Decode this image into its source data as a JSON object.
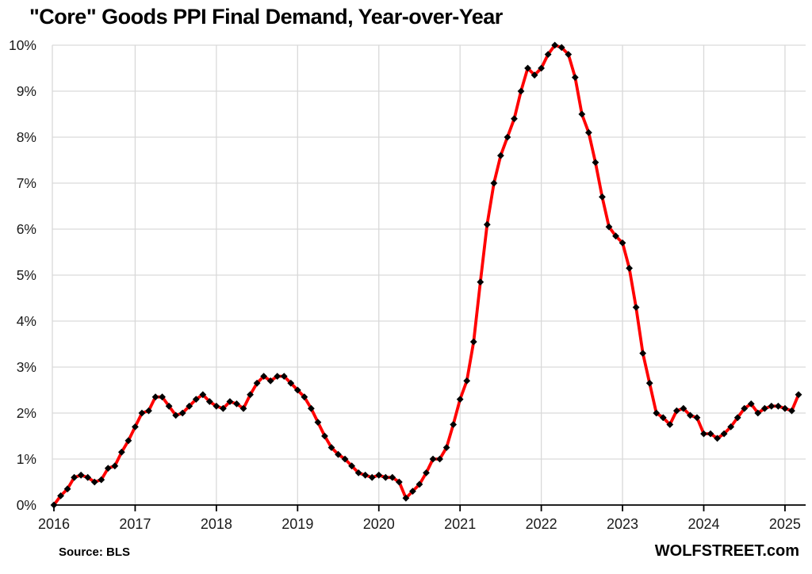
{
  "chart": {
    "title": "\"Core\" Goods PPI Final Demand, Year-over-Year"
  },
  "footer": {
    "source": "Source: BLS",
    "watermark": "WOLFSTREET.com"
  },
  "chart_data": {
    "type": "line",
    "title": "\"Core\" Goods PPI Final Demand, Year-over-Year",
    "unit": "percent, year-over-year",
    "frequency": "monthly",
    "x_start": "2016-01",
    "x_end": "2025-03",
    "x_tick_labels": [
      "2016",
      "2017",
      "2018",
      "2019",
      "2020",
      "2021",
      "2022",
      "2023",
      "2024",
      "2025"
    ],
    "y_tick_labels": [
      "0%",
      "1%",
      "2%",
      "3%",
      "4%",
      "5%",
      "6%",
      "7%",
      "8%",
      "9%",
      "10%"
    ],
    "ylim": [
      0,
      10
    ],
    "grid": true,
    "legend": "none",
    "colors": {
      "line": "#FF0000",
      "marker": "#000000",
      "gridline": "#D9D9D9",
      "axis": "#000000",
      "tick_text": "#1A1A1A"
    },
    "series": [
      {
        "name": "Core Goods PPI Final Demand, YoY %",
        "color": "#FF0000",
        "marker": "diamond",
        "marker_color": "#000000",
        "values": [
          0.0,
          0.2,
          0.35,
          0.6,
          0.65,
          0.6,
          0.5,
          0.55,
          0.8,
          0.85,
          1.15,
          1.4,
          1.7,
          2.0,
          2.05,
          2.35,
          2.35,
          2.15,
          1.95,
          2.0,
          2.15,
          2.3,
          2.4,
          2.25,
          2.15,
          2.1,
          2.25,
          2.2,
          2.1,
          2.4,
          2.65,
          2.8,
          2.7,
          2.8,
          2.8,
          2.65,
          2.5,
          2.35,
          2.1,
          1.8,
          1.5,
          1.25,
          1.1,
          1.0,
          0.85,
          0.7,
          0.65,
          0.6,
          0.65,
          0.6,
          0.6,
          0.5,
          0.15,
          0.3,
          0.45,
          0.7,
          1.0,
          1.0,
          1.25,
          1.75,
          2.3,
          2.7,
          3.55,
          4.85,
          6.1,
          7.0,
          7.6,
          8.0,
          8.4,
          9.0,
          9.5,
          9.35,
          9.5,
          9.8,
          10.0,
          9.95,
          9.8,
          9.3,
          8.5,
          8.1,
          7.45,
          6.7,
          6.05,
          5.85,
          5.7,
          5.15,
          4.3,
          3.3,
          2.65,
          2.0,
          1.9,
          1.75,
          2.05,
          2.1,
          1.95,
          1.9,
          1.55,
          1.55,
          1.45,
          1.55,
          1.7,
          1.9,
          2.1,
          2.2,
          2.0,
          2.1,
          2.15,
          2.15,
          2.1,
          2.05,
          2.4
        ]
      }
    ]
  }
}
